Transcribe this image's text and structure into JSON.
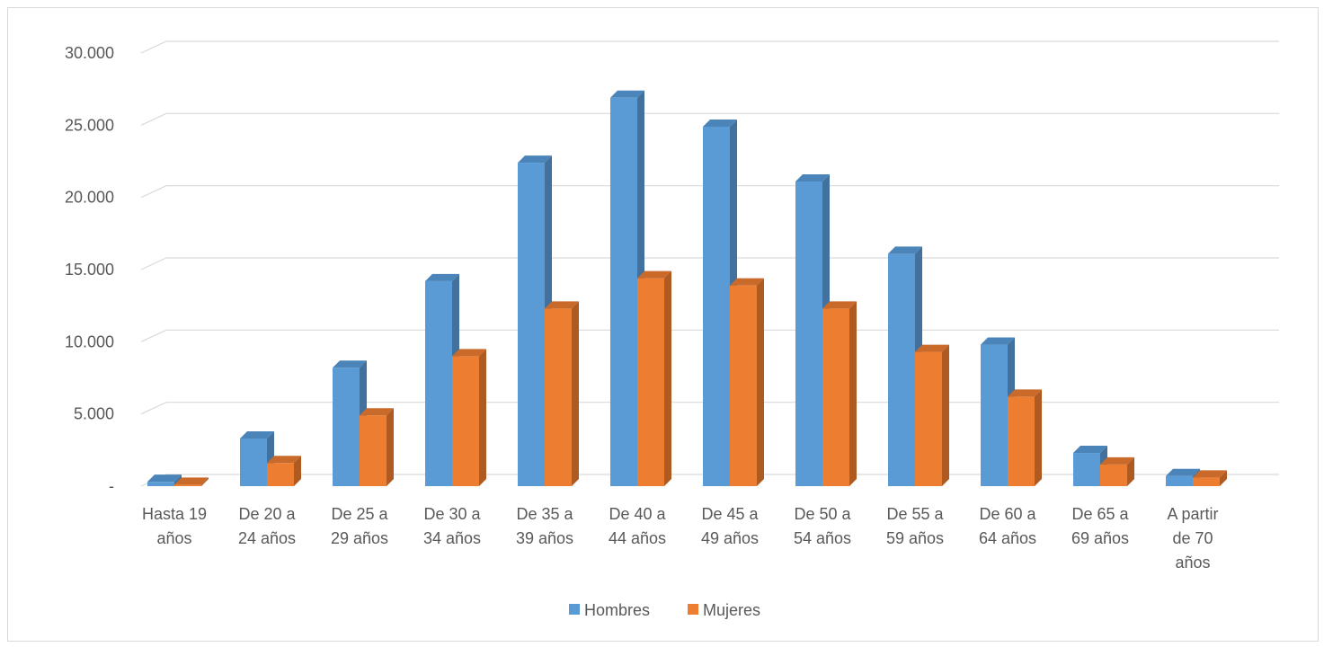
{
  "chart_data": {
    "type": "bar",
    "categories": [
      [
        "Hasta 19",
        "años"
      ],
      [
        "De 20 a",
        "24 años"
      ],
      [
        "De 25 a",
        "29 años"
      ],
      [
        "De 30 a",
        "34 años"
      ],
      [
        "De 35 a",
        "39 años"
      ],
      [
        "De 40 a",
        "44 años"
      ],
      [
        "De 45 a",
        "49 años"
      ],
      [
        "De 50 a",
        "54 años"
      ],
      [
        "De 55 a",
        "59 años"
      ],
      [
        "De 60 a",
        "64 años"
      ],
      [
        "De 65 a",
        "69 años"
      ],
      [
        "A partir",
        "de 70",
        "años"
      ]
    ],
    "series": [
      {
        "name": "Hombres",
        "color": "#5b9bd5",
        "side_color": "#41719c",
        "top_color": "#4a84b8",
        "values": [
          300,
          3300,
          8200,
          14200,
          22400,
          26900,
          24900,
          21100,
          16100,
          9800,
          2300,
          700
        ]
      },
      {
        "name": "Mujeres",
        "color": "#ed7d31",
        "side_color": "#ae5a21",
        "top_color": "#c9692a",
        "values": [
          100,
          1600,
          4900,
          9000,
          12300,
          14400,
          13900,
          12300,
          9300,
          6200,
          1500,
          600
        ]
      }
    ],
    "y_ticks": [
      {
        "value": 0,
        "label": "-"
      },
      {
        "value": 5000,
        "label": "5.000"
      },
      {
        "value": 10000,
        "label": "10.000"
      },
      {
        "value": 15000,
        "label": "15.000"
      },
      {
        "value": 20000,
        "label": "20.000"
      },
      {
        "value": 25000,
        "label": "25.000"
      },
      {
        "value": 30000,
        "label": "30.000"
      }
    ],
    "ylim": [
      0,
      30000
    ],
    "grid": true,
    "legend_position": "bottom",
    "title": "",
    "xlabel": "",
    "ylabel": ""
  }
}
